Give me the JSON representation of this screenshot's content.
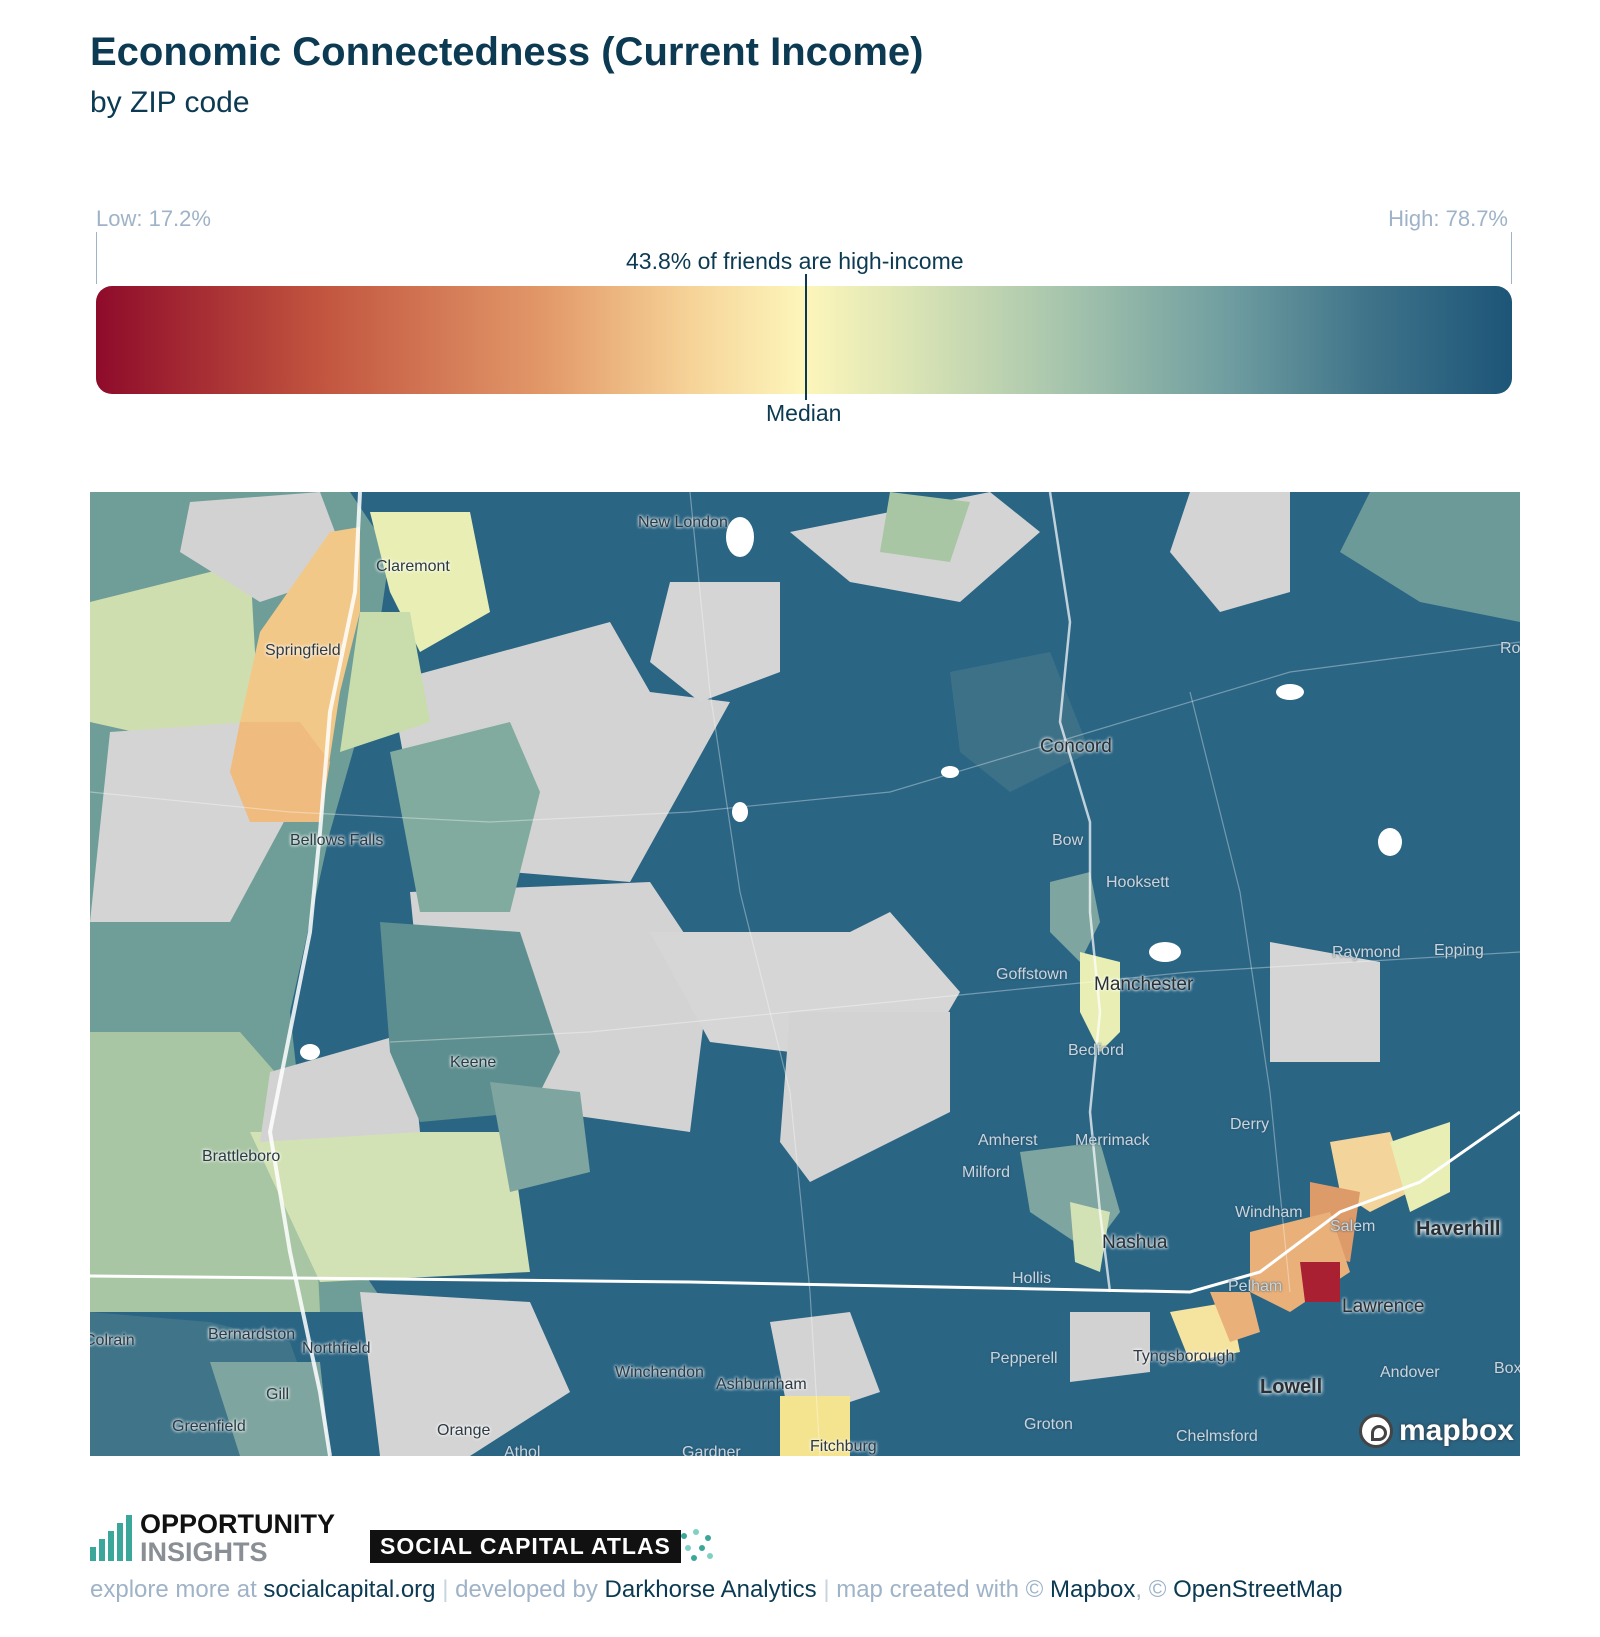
{
  "header": {
    "title": "Economic Connectedness (Current Income)",
    "subtitle": "by ZIP code"
  },
  "legend": {
    "low_label": "Low: 17.2%",
    "high_label": "High: 78.7%",
    "caption": "43.8% of friends are high-income",
    "median_label": "Median",
    "low_value": 17.2,
    "high_value": 78.7,
    "median_value": 43.8,
    "colors": [
      "#8e0b2a",
      "#c2553f",
      "#e39a6a",
      "#fdf6bb",
      "#a8c6ad",
      "#6f9da0",
      "#1d5578"
    ]
  },
  "map": {
    "places": {
      "new_london": "New London",
      "claremont": "Claremont",
      "springfield": "Springfield",
      "concord": "Concord",
      "bellows_falls": "Bellows Falls",
      "bow": "Bow",
      "hooksett": "Hooksett",
      "raymond": "Raymond",
      "epping": "Epping",
      "goffstown": "Goffstown",
      "manchester": "Manchester",
      "keene": "Keene",
      "bedford": "Bedford",
      "brattleboro": "Brattleboro",
      "amherst": "Amherst",
      "merrimack": "Merrimack",
      "derry": "Derry",
      "milford": "Milford",
      "windham": "Windham",
      "salem": "Salem",
      "haverhill": "Haverhill",
      "nashua": "Nashua",
      "hollis": "Hollis",
      "pelham": "Pelham",
      "lawrence": "Lawrence",
      "colrain": "Colrain",
      "bernardston": "Bernardston",
      "northfield": "Northfield",
      "winchendon": "Winchendon",
      "ashburnham": "Ashburnham",
      "pepperell": "Pepperell",
      "tyngsborough": "Tyngsborough",
      "andover": "Andover",
      "gill": "Gill",
      "lowell": "Lowell",
      "greenfield": "Greenfield",
      "orange": "Orange",
      "gardner": "Gardner",
      "fitchburg": "Fitchburg",
      "groton": "Groton",
      "chelmsford": "Chelmsford",
      "athol": "Athol",
      "ro": "Ro",
      "box": "Box"
    },
    "attribution_logo": "mapbox"
  },
  "branding": {
    "org_line1": "OPPORTUNITY",
    "org_line2": "INSIGHTS",
    "atlas_label": "SOCIAL CAPITAL ATLAS"
  },
  "footer": {
    "explore_text": "explore more at",
    "site_link": "socialcapital.org",
    "developed_text": "developed by",
    "developer_link": "Darkhorse Analytics",
    "map_text": "map created with ©",
    "mapbox_link": "Mapbox",
    "copyright": "©",
    "osm_link": "OpenStreetMap"
  }
}
